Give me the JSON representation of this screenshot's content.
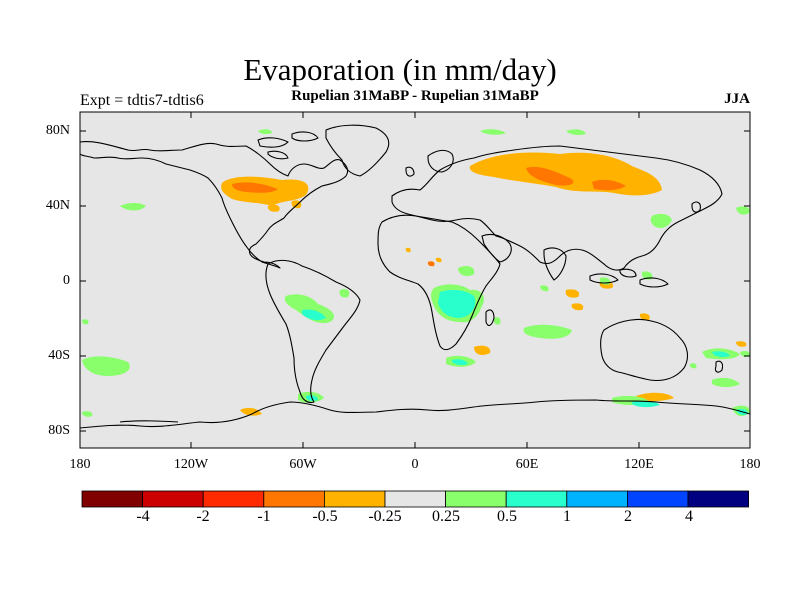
{
  "title": "Evaporation (in mm/day)",
  "subtitle": "Rupelian  31MaBP - Rupelian  31MaBP",
  "left_label": "Expt = tdtis7-tdtis6",
  "right_label": "JJA",
  "lat_labels": [
    "80N",
    "40N",
    "0",
    "40S",
    "80S"
  ],
  "lon_labels": [
    "180",
    "120W",
    "60W",
    "0",
    "60E",
    "120E",
    "180"
  ],
  "colorbar": {
    "colors": [
      "#800000",
      "#cc0000",
      "#ff2a00",
      "#ff7700",
      "#ffb300",
      "#e6e6e6",
      "#88ff6b",
      "#29ffcc",
      "#00b3ff",
      "#0044ff",
      "#000080"
    ],
    "labels": [
      "-4",
      "-2",
      "-1",
      "-0.5",
      "-0.25",
      "0.25",
      "0.5",
      "1",
      "2",
      "4"
    ]
  },
  "map": {
    "background_color": "#e6e6e6",
    "coast_color": "#000000"
  }
}
